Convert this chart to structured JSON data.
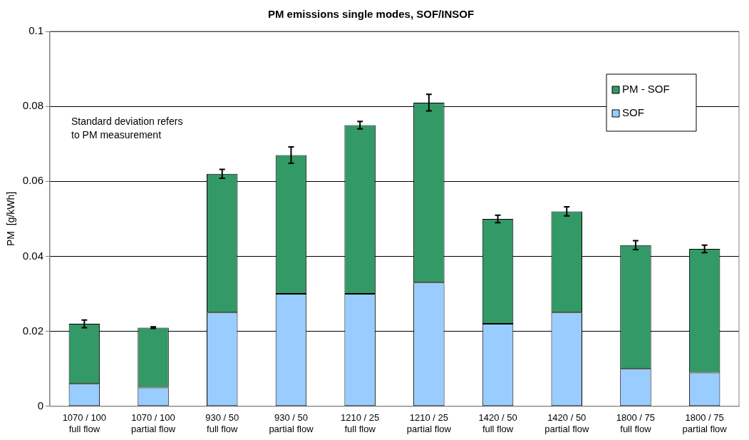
{
  "chart_data": {
    "type": "bar",
    "title": "PM emissions single modes, SOF/INSOF",
    "ylabel": "PM  [g/kWh]",
    "categories": [
      "1070 / 100\nfull flow",
      "1070 / 100\npartial flow",
      "930 / 50\nfull flow",
      "930 / 50\npartial flow",
      "1210 / 25\nfull flow",
      "1210 / 25\npartial flow",
      "1420 / 50\nfull flow",
      "1420 / 50\npartial flow",
      "1800 / 75\nfull flow",
      "1800 / 75\npartial flow"
    ],
    "series": [
      {
        "name": "SOF",
        "color": "#99ccff",
        "values": [
          0.006,
          0.005,
          0.025,
          0.03,
          0.03,
          0.033,
          0.022,
          0.025,
          0.01,
          0.009
        ]
      },
      {
        "name": "PM - SOF",
        "color": "#339966",
        "values": [
          0.016,
          0.016,
          0.037,
          0.037,
          0.045,
          0.048,
          0.028,
          0.027,
          0.033,
          0.033
        ],
        "errors": [
          0.001,
          0.0002,
          0.0012,
          0.0022,
          0.001,
          0.0022,
          0.001,
          0.0012,
          0.0012,
          0.001
        ]
      }
    ],
    "stacked": true,
    "ylim": [
      0,
      0.1
    ],
    "yticks": [
      0,
      0.02,
      0.04,
      0.06,
      0.08,
      0.1
    ],
    "grid": "y",
    "legend": "top right",
    "annotations": [
      "Standard deviation refers\nto PM measurement"
    ]
  }
}
